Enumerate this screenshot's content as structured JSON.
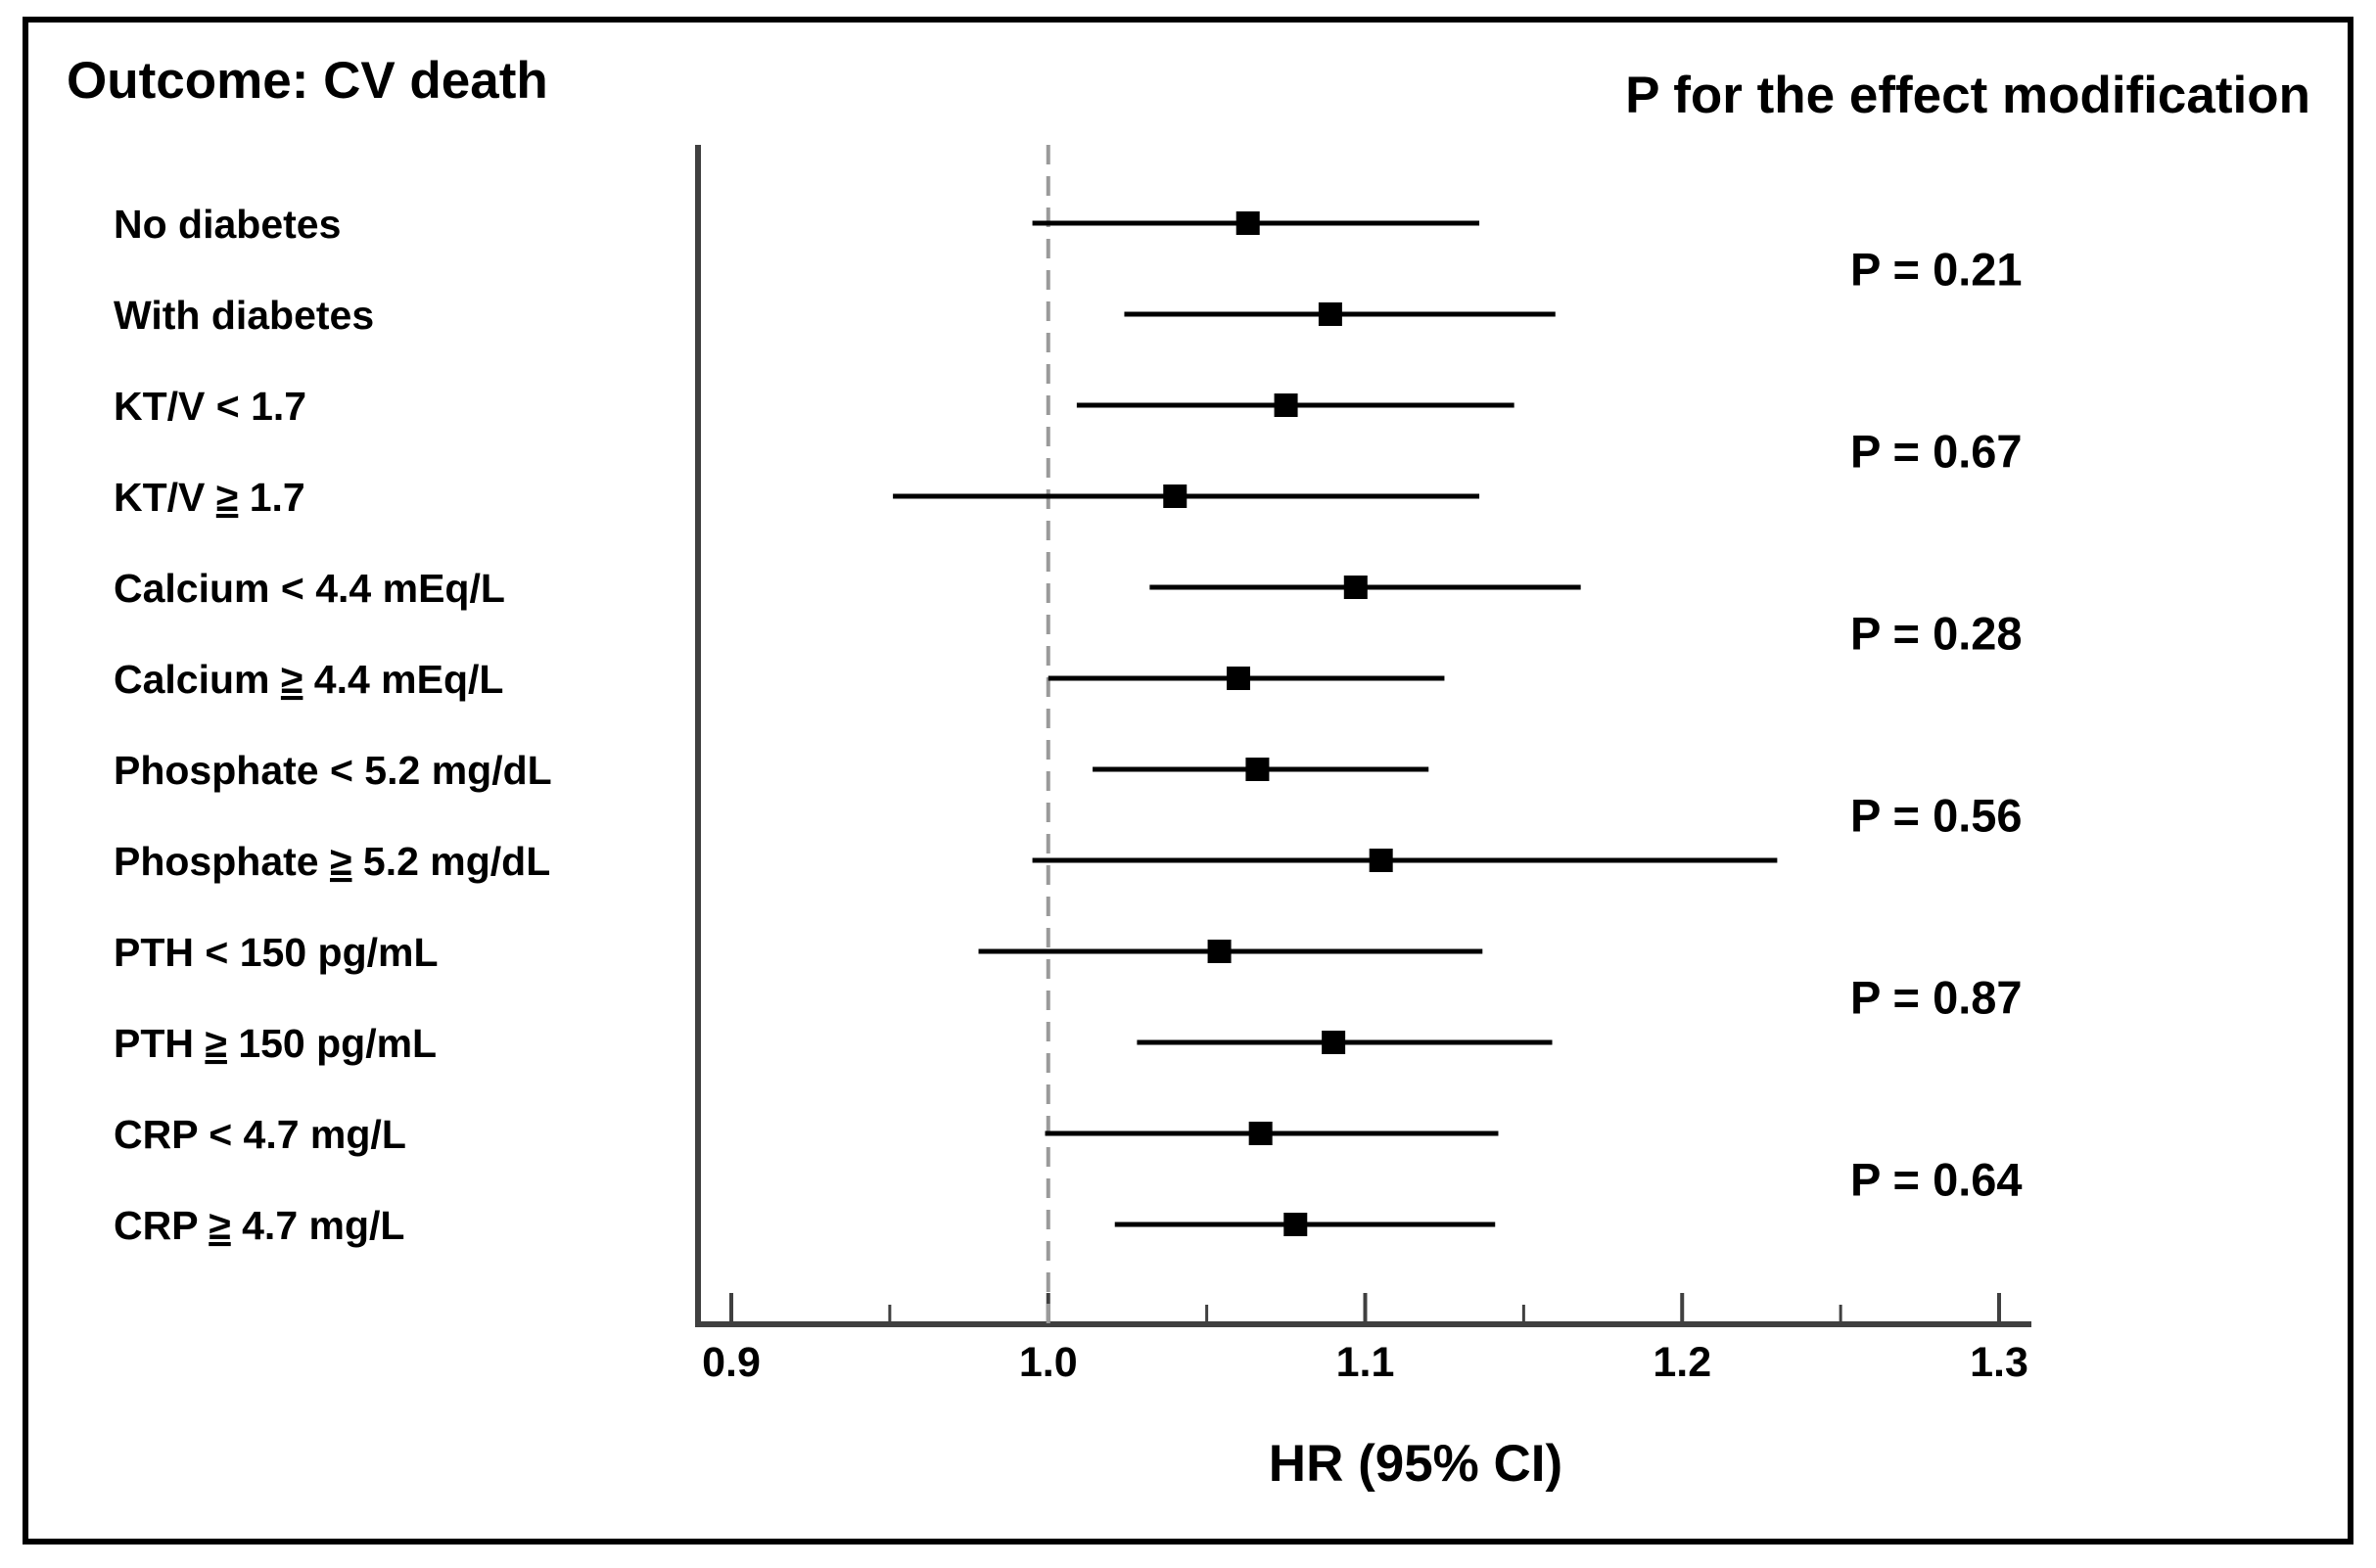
{
  "chart_data": {
    "type": "forest",
    "title": "Outcome: CV death",
    "p_header": "P for the effect modification",
    "xlabel": "HR (95% CI)",
    "xlim": [
      0.9,
      1.3
    ],
    "reference_line": 1.0,
    "ticks": [
      0.9,
      1.0,
      1.1,
      1.2,
      1.3
    ],
    "tick_labels": [
      "0.9",
      "1.0",
      "1.1",
      "1.2",
      "1.3"
    ],
    "rows": [
      {
        "label_parts": [
          "No diabetes"
        ],
        "hr": 1.063,
        "lower": 0.995,
        "upper": 1.136
      },
      {
        "label_parts": [
          "With diabetes"
        ],
        "hr": 1.089,
        "lower": 1.024,
        "upper": 1.16
      },
      {
        "label_parts": [
          "KT/V < 1.7"
        ],
        "hr": 1.075,
        "lower": 1.009,
        "upper": 1.147
      },
      {
        "label_parts": [
          "KT/V ",
          "≥",
          " 1.7"
        ],
        "hr": 1.04,
        "lower": 0.951,
        "upper": 1.136
      },
      {
        "label_parts": [
          "Calcium < 4.4 mEq/L"
        ],
        "hr": 1.097,
        "lower": 1.032,
        "upper": 1.168
      },
      {
        "label_parts": [
          "Calcium ",
          "≥",
          " 4.4 mEq/L"
        ],
        "hr": 1.06,
        "lower": 1.0,
        "upper": 1.125
      },
      {
        "label_parts": [
          "Phosphate < 5.2 mg/dL"
        ],
        "hr": 1.066,
        "lower": 1.014,
        "upper": 1.12
      },
      {
        "label_parts": [
          "Phosphate ",
          "≥",
          " 5.2 mg/dL"
        ],
        "hr": 1.105,
        "lower": 0.995,
        "upper": 1.23
      },
      {
        "label_parts": [
          "PTH < 150 pg/mL"
        ],
        "hr": 1.054,
        "lower": 0.978,
        "upper": 1.137
      },
      {
        "label_parts": [
          "PTH ",
          "≥",
          " 150 pg/mL"
        ],
        "hr": 1.09,
        "lower": 1.028,
        "upper": 1.159
      },
      {
        "label_parts": [
          "CRP < 4.7 mg/L"
        ],
        "hr": 1.067,
        "lower": 0.999,
        "upper": 1.142
      },
      {
        "label_parts": [
          "CRP ",
          "≥",
          " 4.7 mg/L"
        ],
        "hr": 1.078,
        "lower": 1.021,
        "upper": 1.141
      }
    ],
    "p_values": [
      {
        "text": "P = 0.21",
        "rows": [
          0,
          1
        ]
      },
      {
        "text": "P = 0.67",
        "rows": [
          2,
          3
        ]
      },
      {
        "text": "P = 0.28",
        "rows": [
          4,
          5
        ]
      },
      {
        "text": "P = 0.56",
        "rows": [
          6,
          7
        ]
      },
      {
        "text": "P = 0.87",
        "rows": [
          8,
          9
        ]
      },
      {
        "text": "P = 0.64",
        "rows": [
          10,
          11
        ]
      }
    ]
  }
}
